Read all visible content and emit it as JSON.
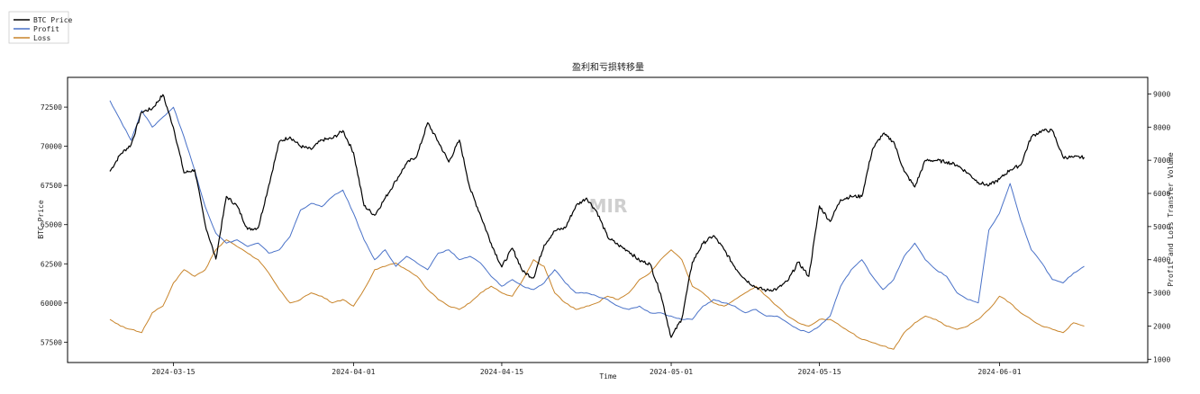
{
  "chart_data": {
    "type": "line",
    "title": "盈利和亏损转移量",
    "xlabel": "Time",
    "ylabel_left": "BTC Price",
    "ylabel_right": "Profit and Loss Transfer Volume",
    "watermark": "MIR",
    "x_ticks": [
      "2024-03-15",
      "2024-04-01",
      "2024-04-15",
      "2024-05-01",
      "2024-05-15",
      "2024-06-01"
    ],
    "y_left_ticks": [
      57500,
      60000,
      62500,
      65000,
      67500,
      70000,
      72500
    ],
    "y_left_ticks_text": [
      "57500",
      "60000",
      "62500",
      "65000",
      "67500",
      "70000",
      "72500"
    ],
    "y_right_ticks": [
      1000,
      2000,
      3000,
      4000,
      5000,
      6000,
      7000,
      8000,
      9000
    ],
    "y_right_ticks_text": [
      "1000",
      "2000",
      "3000",
      "4000",
      "5000",
      "6000",
      "7000",
      "8000",
      "9000"
    ],
    "xlim": [
      "2024-03-05",
      "2024-06-15"
    ],
    "ylim_left": [
      56200,
      74400
    ],
    "ylim_right": [
      900,
      9500
    ],
    "legend_position": "top-left",
    "grid": false,
    "series": [
      {
        "name": "BTC Price",
        "axis": "left",
        "color": "#000000",
        "x": [
          "2024-03-09",
          "2024-03-10",
          "2024-03-11",
          "2024-03-12",
          "2024-03-13",
          "2024-03-14",
          "2024-03-15",
          "2024-03-16",
          "2024-03-17",
          "2024-03-18",
          "2024-03-19",
          "2024-03-20",
          "2024-03-21",
          "2024-03-22",
          "2024-03-23",
          "2024-03-24",
          "2024-03-25",
          "2024-03-26",
          "2024-03-27",
          "2024-03-28",
          "2024-03-29",
          "2024-03-30",
          "2024-03-31",
          "2024-04-01",
          "2024-04-02",
          "2024-04-03",
          "2024-04-04",
          "2024-04-05",
          "2024-04-06",
          "2024-04-07",
          "2024-04-08",
          "2024-04-09",
          "2024-04-10",
          "2024-04-11",
          "2024-04-12",
          "2024-04-13",
          "2024-04-14",
          "2024-04-15",
          "2024-04-16",
          "2024-04-17",
          "2024-04-18",
          "2024-04-19",
          "2024-04-20",
          "2024-04-21",
          "2024-04-22",
          "2024-04-23",
          "2024-04-24",
          "2024-04-25",
          "2024-04-26",
          "2024-04-27",
          "2024-04-28",
          "2024-04-29",
          "2024-04-30",
          "2024-05-01",
          "2024-05-02",
          "2024-05-03",
          "2024-05-04",
          "2024-05-05",
          "2024-05-06",
          "2024-05-07",
          "2024-05-08",
          "2024-05-09",
          "2024-05-10",
          "2024-05-11",
          "2024-05-12",
          "2024-05-13",
          "2024-05-14",
          "2024-05-15",
          "2024-05-16",
          "2024-05-17",
          "2024-05-18",
          "2024-05-19",
          "2024-05-20",
          "2024-05-21",
          "2024-05-22",
          "2024-05-23",
          "2024-05-24",
          "2024-05-25",
          "2024-05-26",
          "2024-05-27",
          "2024-05-28",
          "2024-05-29",
          "2024-05-30",
          "2024-05-31",
          "2024-06-01",
          "2024-06-02",
          "2024-06-03",
          "2024-06-04",
          "2024-06-05",
          "2024-06-06",
          "2024-06-07",
          "2024-06-08",
          "2024-06-09"
        ],
        "values": [
          68400,
          69500,
          70100,
          72200,
          72400,
          73300,
          71200,
          68300,
          68500,
          65000,
          62800,
          66800,
          66200,
          64700,
          64800,
          67500,
          70300,
          70600,
          70000,
          69800,
          70400,
          70500,
          71000,
          69600,
          66200,
          65600,
          66700,
          67800,
          68900,
          69400,
          71500,
          70300,
          69000,
          70400,
          67300,
          65600,
          63800,
          62300,
          63500,
          62000,
          61600,
          63700,
          64600,
          64800,
          66200,
          66700,
          65800,
          64200,
          63700,
          63300,
          62700,
          62500,
          60600,
          57800,
          59000,
          62600,
          63800,
          64300,
          63400,
          62300,
          61500,
          61000,
          60800,
          60900,
          61400,
          62600,
          61700,
          66200,
          65200,
          66600,
          66800,
          66800,
          69800,
          70800,
          70300,
          68400,
          67400,
          69100,
          69100,
          69000,
          68800,
          68300,
          67700,
          67500,
          67900,
          68500,
          68800,
          70600,
          71000,
          71000,
          69300,
          69300,
          69300
        ]
      },
      {
        "name": "Profit",
        "axis": "right",
        "color": "#4a72c8",
        "x": [
          "2024-03-09",
          "2024-03-10",
          "2024-03-11",
          "2024-03-12",
          "2024-03-13",
          "2024-03-14",
          "2024-03-15",
          "2024-03-16",
          "2024-03-17",
          "2024-03-18",
          "2024-03-19",
          "2024-03-20",
          "2024-03-21",
          "2024-03-22",
          "2024-03-23",
          "2024-03-24",
          "2024-03-25",
          "2024-03-26",
          "2024-03-27",
          "2024-03-28",
          "2024-03-29",
          "2024-03-30",
          "2024-03-31",
          "2024-04-01",
          "2024-04-02",
          "2024-04-03",
          "2024-04-04",
          "2024-04-05",
          "2024-04-06",
          "2024-04-07",
          "2024-04-08",
          "2024-04-09",
          "2024-04-10",
          "2024-04-11",
          "2024-04-12",
          "2024-04-13",
          "2024-04-14",
          "2024-04-15",
          "2024-04-16",
          "2024-04-17",
          "2024-04-18",
          "2024-04-19",
          "2024-04-20",
          "2024-04-21",
          "2024-04-22",
          "2024-04-23",
          "2024-04-24",
          "2024-04-25",
          "2024-04-26",
          "2024-04-27",
          "2024-04-28",
          "2024-04-29",
          "2024-04-30",
          "2024-05-01",
          "2024-05-02",
          "2024-05-03",
          "2024-05-04",
          "2024-05-05",
          "2024-05-06",
          "2024-05-07",
          "2024-05-08",
          "2024-05-09",
          "2024-05-10",
          "2024-05-11",
          "2024-05-12",
          "2024-05-13",
          "2024-05-14",
          "2024-05-15",
          "2024-05-16",
          "2024-05-17",
          "2024-05-18",
          "2024-05-19",
          "2024-05-20",
          "2024-05-21",
          "2024-05-22",
          "2024-05-23",
          "2024-05-24",
          "2024-05-25",
          "2024-05-26",
          "2024-05-27",
          "2024-05-28",
          "2024-05-29",
          "2024-05-30",
          "2024-05-31",
          "2024-06-01",
          "2024-06-02",
          "2024-06-03",
          "2024-06-04",
          "2024-06-05",
          "2024-06-06",
          "2024-06-07",
          "2024-06-08",
          "2024-06-09"
        ],
        "values": [
          8800,
          8200,
          7600,
          8500,
          8000,
          8300,
          8600,
          7700,
          6700,
          5600,
          4800,
          4500,
          4600,
          4400,
          4500,
          4200,
          4300,
          4700,
          5500,
          5700,
          5600,
          5900,
          6100,
          5400,
          4600,
          4000,
          4300,
          3800,
          4100,
          3900,
          3700,
          4200,
          4300,
          4000,
          4100,
          3900,
          3500,
          3200,
          3400,
          3200,
          3100,
          3300,
          3700,
          3300,
          3000,
          3000,
          2900,
          2800,
          2600,
          2500,
          2600,
          2400,
          2400,
          2300,
          2200,
          2200,
          2600,
          2800,
          2700,
          2600,
          2400,
          2500,
          2300,
          2300,
          2100,
          1900,
          1800,
          2000,
          2300,
          3200,
          3700,
          4000,
          3500,
          3100,
          3400,
          4100,
          4500,
          4000,
          3700,
          3500,
          3000,
          2800,
          2700,
          4900,
          5400,
          6300,
          5200,
          4300,
          3900,
          3400,
          3300,
          3600,
          3800
        ]
      },
      {
        "name": "Loss",
        "axis": "right",
        "color": "#c8842a",
        "x": [
          "2024-03-09",
          "2024-03-10",
          "2024-03-11",
          "2024-03-12",
          "2024-03-13",
          "2024-03-14",
          "2024-03-15",
          "2024-03-16",
          "2024-03-17",
          "2024-03-18",
          "2024-03-19",
          "2024-03-20",
          "2024-03-21",
          "2024-03-22",
          "2024-03-23",
          "2024-03-24",
          "2024-03-25",
          "2024-03-26",
          "2024-03-27",
          "2024-03-28",
          "2024-03-29",
          "2024-03-30",
          "2024-03-31",
          "2024-04-01",
          "2024-04-02",
          "2024-04-03",
          "2024-04-04",
          "2024-04-05",
          "2024-04-06",
          "2024-04-07",
          "2024-04-08",
          "2024-04-09",
          "2024-04-10",
          "2024-04-11",
          "2024-04-12",
          "2024-04-13",
          "2024-04-14",
          "2024-04-15",
          "2024-04-16",
          "2024-04-17",
          "2024-04-18",
          "2024-04-19",
          "2024-04-20",
          "2024-04-21",
          "2024-04-22",
          "2024-04-23",
          "2024-04-24",
          "2024-04-25",
          "2024-04-26",
          "2024-04-27",
          "2024-04-28",
          "2024-04-29",
          "2024-04-30",
          "2024-05-01",
          "2024-05-02",
          "2024-05-03",
          "2024-05-04",
          "2024-05-05",
          "2024-05-06",
          "2024-05-07",
          "2024-05-08",
          "2024-05-09",
          "2024-05-10",
          "2024-05-11",
          "2024-05-12",
          "2024-05-13",
          "2024-05-14",
          "2024-05-15",
          "2024-05-16",
          "2024-05-17",
          "2024-05-18",
          "2024-05-19",
          "2024-05-20",
          "2024-05-21",
          "2024-05-22",
          "2024-05-23",
          "2024-05-24",
          "2024-05-25",
          "2024-05-26",
          "2024-05-27",
          "2024-05-28",
          "2024-05-29",
          "2024-05-30",
          "2024-05-31",
          "2024-06-01",
          "2024-06-02",
          "2024-06-03",
          "2024-06-04",
          "2024-06-05",
          "2024-06-06",
          "2024-06-07",
          "2024-06-08",
          "2024-06-09"
        ],
        "values": [
          2200,
          2000,
          1900,
          1800,
          2400,
          2600,
          3300,
          3700,
          3500,
          3700,
          4300,
          4600,
          4400,
          4200,
          4000,
          3600,
          3100,
          2700,
          2800,
          3000,
          2900,
          2700,
          2800,
          2600,
          3100,
          3700,
          3800,
          3900,
          3700,
          3500,
          3100,
          2800,
          2600,
          2500,
          2700,
          3000,
          3200,
          3000,
          2900,
          3400,
          4000,
          3800,
          3000,
          2700,
          2500,
          2600,
          2700,
          2900,
          2800,
          3000,
          3400,
          3600,
          4000,
          4300,
          4000,
          3200,
          3000,
          2700,
          2600,
          2800,
          3000,
          3200,
          2900,
          2600,
          2300,
          2100,
          2000,
          2200,
          2200,
          2000,
          1800,
          1600,
          1500,
          1400,
          1300,
          1800,
          2100,
          2300,
          2200,
          2000,
          1900,
          2000,
          2200,
          2500,
          2900,
          2700,
          2400,
          2200,
          2000,
          1900,
          1800,
          2100,
          2000
        ]
      }
    ]
  }
}
